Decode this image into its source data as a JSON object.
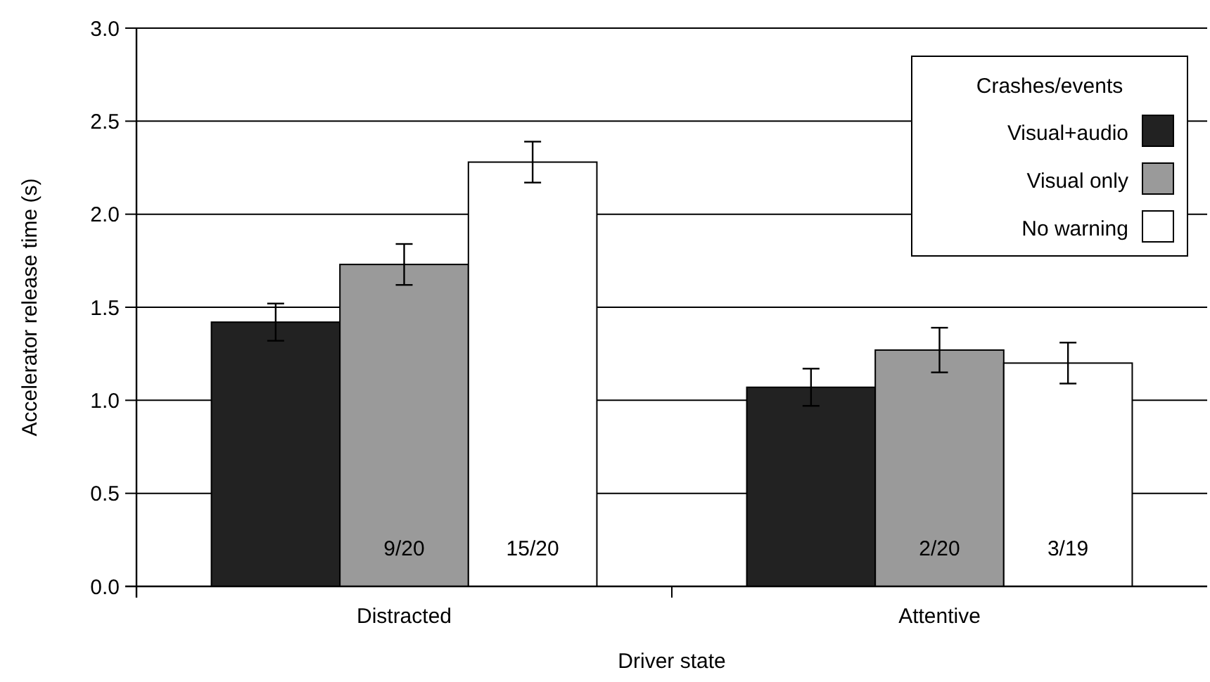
{
  "chart_data": {
    "type": "bar",
    "xlabel": "Driver state",
    "ylabel": "Accelerator release time (s)",
    "legend_title": "Crashes/events",
    "categories": [
      "Distracted",
      "Attentive"
    ],
    "series": [
      {
        "name": "Visual+audio",
        "color": "#222222",
        "values": [
          1.42,
          1.07
        ],
        "errors": [
          0.1,
          0.1
        ]
      },
      {
        "name": "Visual only",
        "color": "#9a9a9a",
        "values": [
          1.73,
          1.27
        ],
        "errors": [
          0.11,
          0.12
        ],
        "value_labels": [
          "9/20",
          "2/20"
        ]
      },
      {
        "name": "No warning",
        "color": "#ffffff",
        "values": [
          2.28,
          1.2
        ],
        "errors": [
          0.11,
          0.11
        ],
        "value_labels": [
          "15/20",
          "3/19"
        ]
      }
    ],
    "ylim": [
      0,
      3
    ],
    "yticks": [
      {
        "value": 0,
        "label": "0.0"
      },
      {
        "value": 0.5,
        "label": "0.5"
      },
      {
        "value": 1,
        "label": "1.0"
      },
      {
        "value": 1.5,
        "label": "1.5"
      },
      {
        "value": 2,
        "label": "2.0"
      },
      {
        "value": 2.5,
        "label": "2.5"
      },
      {
        "value": 3,
        "label": "3.0"
      }
    ],
    "grid": "y",
    "legend": "top right"
  }
}
